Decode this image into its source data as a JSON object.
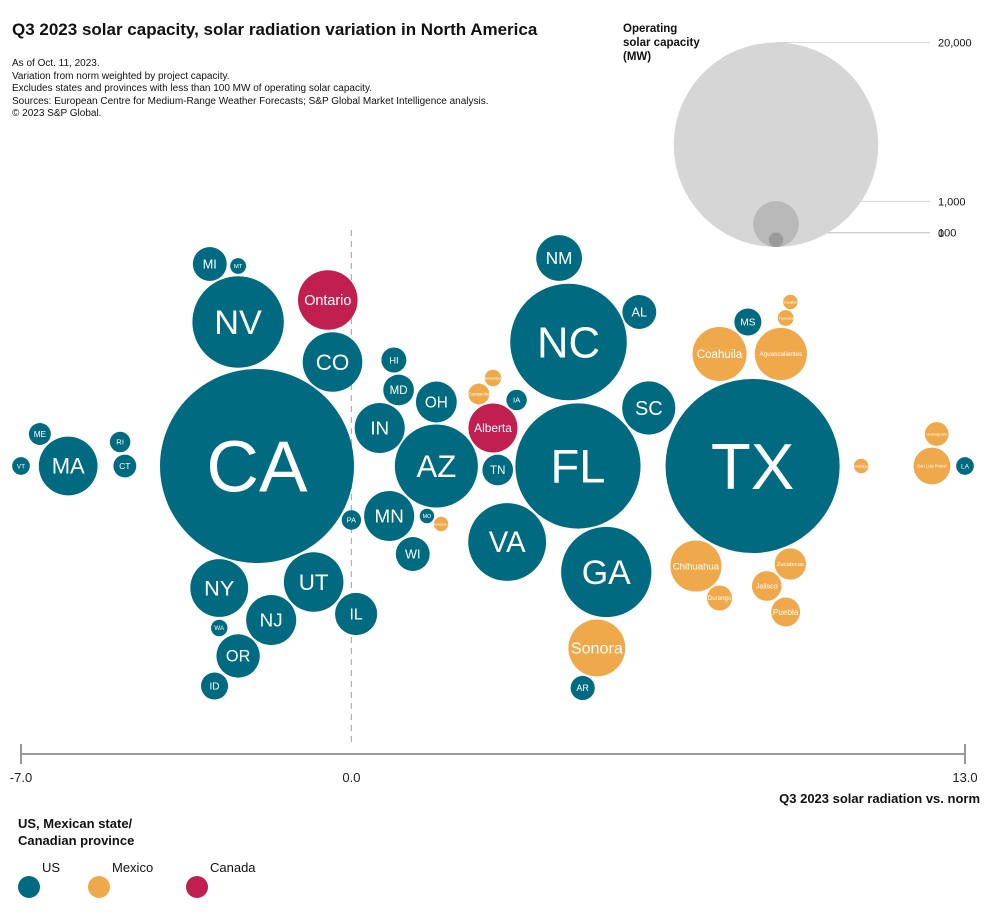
{
  "header": {
    "title": "Q3 2023 solar capacity, solar radiation variation in North America",
    "notes": [
      "As of Oct. 11, 2023.",
      "Variation from norm weighted by project capacity.",
      "Excludes states and provinces with less than 100 MW of operating solar capacity.",
      "Sources: European Centre for Medium-Range Weather Forecasts; S&P Global Market Intelligence analysis.",
      "© 2023 S&P Global."
    ]
  },
  "colors": {
    "US": "#006b80",
    "Mexico": "#f0a94a",
    "Canada": "#c01f50",
    "size_legend": "#cccccc",
    "axis": "#999999"
  },
  "legend": {
    "title_line1": "US, Mexican state/",
    "title_line2": "Canadian province",
    "items": [
      "US",
      "Mexico",
      "Canada"
    ]
  },
  "chart_data": {
    "type": "scatter",
    "title": "Q3 2023 solar capacity, solar radiation variation in North America",
    "xlabel": "Q3 2023 solar radiation vs. norm",
    "xlim": [
      -7.0,
      13.0
    ],
    "xticks": [
      "-7.0",
      "0.0",
      "13.0"
    ],
    "size_legend": {
      "title": [
        "Operating",
        "solar capacity",
        "(MW)"
      ],
      "values": [
        20000,
        1000,
        100,
        0
      ],
      "labels": [
        "20,000",
        "1,000",
        "100",
        "0"
      ]
    },
    "points": [
      {
        "label": "CA",
        "group": "US",
        "x": -2.0,
        "mw": 18000
      },
      {
        "label": "TX",
        "group": "US",
        "x": 8.5,
        "mw": 14500
      },
      {
        "label": "FL",
        "group": "US",
        "x": 4.8,
        "mw": 7500
      },
      {
        "label": "NC",
        "group": "US",
        "x": 4.6,
        "mw": 6500
      },
      {
        "label": "AZ",
        "group": "US",
        "x": 1.8,
        "mw": 3300
      },
      {
        "label": "GA",
        "group": "US",
        "x": 5.4,
        "mw": 3900
      },
      {
        "label": "NV",
        "group": "US",
        "x": -2.4,
        "mw": 4000
      },
      {
        "label": "VA",
        "group": "US",
        "x": 3.3,
        "mw": 2900
      },
      {
        "label": "CO",
        "group": "US",
        "x": -0.4,
        "mw": 1700
      },
      {
        "label": "NY",
        "group": "US",
        "x": -2.8,
        "mw": 1600
      },
      {
        "label": "UT",
        "group": "US",
        "x": -0.8,
        "mw": 1700
      },
      {
        "label": "NJ",
        "group": "US",
        "x": -1.7,
        "mw": 1200
      },
      {
        "label": "MA",
        "group": "US",
        "x": -6.0,
        "mw": 1650
      },
      {
        "label": "IN",
        "group": "US",
        "x": 0.6,
        "mw": 1200
      },
      {
        "label": "MN",
        "group": "US",
        "x": 0.8,
        "mw": 1200
      },
      {
        "label": "SC",
        "group": "US",
        "x": 6.3,
        "mw": 1350
      },
      {
        "label": "NM",
        "group": "US",
        "x": 4.4,
        "mw": 1000
      },
      {
        "label": "OR",
        "group": "US",
        "x": -2.4,
        "mw": 900
      },
      {
        "label": "IL",
        "group": "US",
        "x": 0.1,
        "mw": 850
      },
      {
        "label": "OH",
        "group": "US",
        "x": 1.8,
        "mw": 800
      },
      {
        "label": "WI",
        "group": "US",
        "x": 1.3,
        "mw": 550
      },
      {
        "label": "MI",
        "group": "US",
        "x": -3.0,
        "mw": 550
      },
      {
        "label": "MD",
        "group": "US",
        "x": 1.0,
        "mw": 450
      },
      {
        "label": "TN",
        "group": "US",
        "x": 3.1,
        "mw": 450
      },
      {
        "label": "AL",
        "group": "US",
        "x": 6.1,
        "mw": 550
      },
      {
        "label": "HI",
        "group": "US",
        "x": 0.9,
        "mw": 300
      },
      {
        "label": "ID",
        "group": "US",
        "x": -2.9,
        "mw": 350
      },
      {
        "label": "MS",
        "group": "US",
        "x": 8.4,
        "mw": 350
      },
      {
        "label": "AR",
        "group": "US",
        "x": 4.9,
        "mw": 280
      },
      {
        "label": "IA",
        "group": "US",
        "x": 3.5,
        "mw": 200
      },
      {
        "label": "RI",
        "group": "US",
        "x": -4.9,
        "mw": 200
      },
      {
        "label": "ME",
        "group": "US",
        "x": -6.6,
        "mw": 230
      },
      {
        "label": "CT",
        "group": "US",
        "x": -4.8,
        "mw": 250
      },
      {
        "label": "MT",
        "group": "US",
        "x": -2.4,
        "mw": 120
      },
      {
        "label": "PA",
        "group": "US",
        "x": 0.0,
        "mw": 180
      },
      {
        "label": "VT",
        "group": "US",
        "x": -7.0,
        "mw": 150
      },
      {
        "label": "WA",
        "group": "US",
        "x": -2.8,
        "mw": 130
      },
      {
        "label": "MO",
        "group": "US",
        "x": 1.6,
        "mw": 100
      },
      {
        "label": "LA",
        "group": "US",
        "x": 13.0,
        "mw": 150
      },
      {
        "label": "Ontario",
        "group": "Canada",
        "x": -0.5,
        "mw": 1700
      },
      {
        "label": "Alberta",
        "group": "Canada",
        "x": 3.0,
        "mw": 1150
      },
      {
        "label": "Sonora",
        "group": "Mexico",
        "x": 5.2,
        "mw": 1550
      },
      {
        "label": "Coahuila",
        "group": "Mexico",
        "x": 7.8,
        "mw": 1400
      },
      {
        "label": "Aguascalientes",
        "group": "Mexico",
        "x": 9.1,
        "mw": 1300
      },
      {
        "label": "Chihuahua",
        "group": "Mexico",
        "x": 7.3,
        "mw": 1250
      },
      {
        "label": "San Luis Potosí",
        "group": "Mexico",
        "x": 12.3,
        "mw": 650
      },
      {
        "label": "Jalisco",
        "group": "Mexico",
        "x": 8.8,
        "mw": 420
      },
      {
        "label": "Zacatecas",
        "group": "Mexico",
        "x": 9.3,
        "mw": 470
      },
      {
        "label": "Puebla",
        "group": "Mexico",
        "x": 9.2,
        "mw": 400
      },
      {
        "label": "Durango",
        "group": "Mexico",
        "x": 7.8,
        "mw": 300
      },
      {
        "label": "Guanajuato",
        "group": "Mexico",
        "x": 12.4,
        "mw": 270
      },
      {
        "label": "Campeche",
        "group": "Mexico",
        "x": 2.7,
        "mw": 210
      },
      {
        "label": "Tamaulipas",
        "group": "Mexico",
        "x": 3.0,
        "mw": 130
      },
      {
        "label": "Sonora-2",
        "group": "Mexico",
        "x": 1.9,
        "mw": 100
      },
      {
        "label": "Tlaxcala",
        "group": "Mexico",
        "x": 9.2,
        "mw": 120
      },
      {
        "label": "Yucatan",
        "group": "Mexico",
        "x": 9.3,
        "mw": 100
      },
      {
        "label": "Hidalgo",
        "group": "Mexico",
        "x": 10.8,
        "mw": 100
      }
    ]
  }
}
